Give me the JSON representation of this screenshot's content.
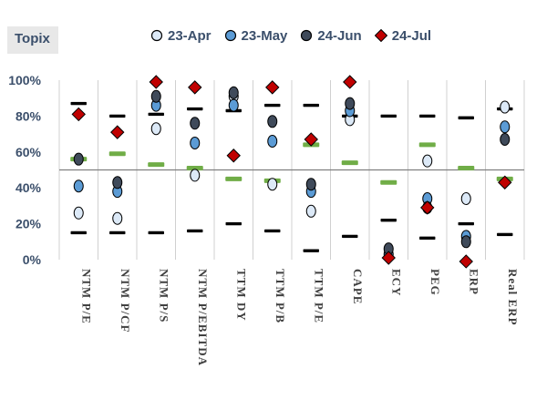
{
  "chart_data": {
    "type": "scatter",
    "title": "Topix",
    "categories": [
      "NTM P/E",
      "NTM P/CF",
      "NTM P/S",
      "NTM P/EBITDA",
      "TTM DY",
      "TTM P/B",
      "TTM P/E",
      "CAPE",
      "ECY",
      "PEG",
      "ERP",
      "Real ERP"
    ],
    "y_ticks": [
      "100%",
      "80%",
      "60%",
      "40%",
      "20%",
      "0%"
    ],
    "ylim": [
      0,
      100
    ],
    "y_unit": "percentile",
    "grid": true,
    "legend_position": "top",
    "series": [
      {
        "name": "23-Apr",
        "marker": "circle",
        "fill": "#dce9f7",
        "values": [
          26,
          23,
          73,
          47,
          91,
          42,
          27,
          78,
          null,
          55,
          34,
          85
        ]
      },
      {
        "name": "23-May",
        "marker": "circle",
        "fill": "#5b9bd5",
        "values": [
          41,
          38,
          86,
          65,
          86,
          66,
          38,
          83,
          3,
          34,
          13,
          74
        ]
      },
      {
        "name": "24-Jun",
        "marker": "circle",
        "fill": "#3f4a5a",
        "values": [
          56,
          43,
          91,
          76,
          93,
          77,
          42,
          87,
          6,
          29,
          10,
          67
        ]
      },
      {
        "name": "24-Jul",
        "marker": "diamond",
        "fill": "#c00000",
        "values": [
          81,
          71,
          99,
          96,
          58,
          96,
          67,
          99,
          1,
          29,
          -1,
          43
        ]
      }
    ],
    "range_high": [
      87,
      80,
      81,
      84,
      83,
      86,
      86,
      80,
      80,
      80,
      79,
      84
    ],
    "range_low": [
      15,
      15,
      15,
      16,
      20,
      16,
      5,
      13,
      22,
      12,
      20,
      14
    ],
    "median": [
      56,
      59,
      53,
      51,
      45,
      44,
      64,
      54,
      43,
      64,
      51,
      45
    ],
    "marker_colors": {
      "range": "#000000",
      "median": "#70ad47",
      "outline": "#000000"
    }
  }
}
